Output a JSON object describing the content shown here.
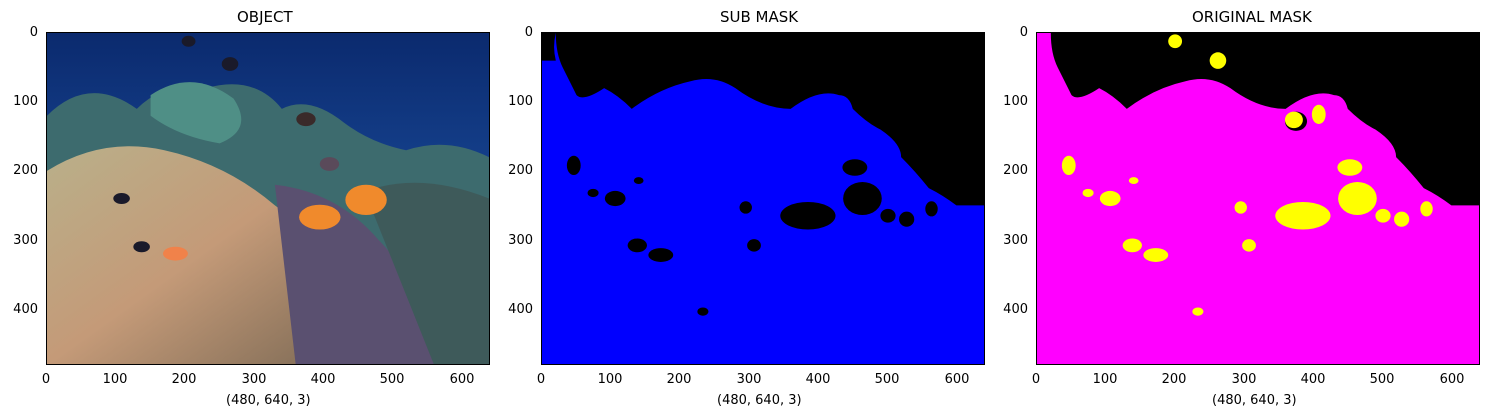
{
  "panels": [
    {
      "title": "OBJECT",
      "xlabel": "(480, 640, 3)"
    },
    {
      "title": "SUB MASK",
      "xlabel": "(480, 640, 3)"
    },
    {
      "title": "ORIGINAL MASK",
      "xlabel": "(480, 640, 3)"
    }
  ],
  "axes": {
    "y_ticks": [
      "0",
      "100",
      "200",
      "300",
      "400"
    ],
    "x_ticks": [
      "0",
      "100",
      "200",
      "300",
      "400",
      "500",
      "600"
    ]
  },
  "colors": {
    "background_mask": "#0000ff",
    "original_background": "#ff00ff",
    "object_mask": "#ffff00",
    "void": "#000000"
  }
}
